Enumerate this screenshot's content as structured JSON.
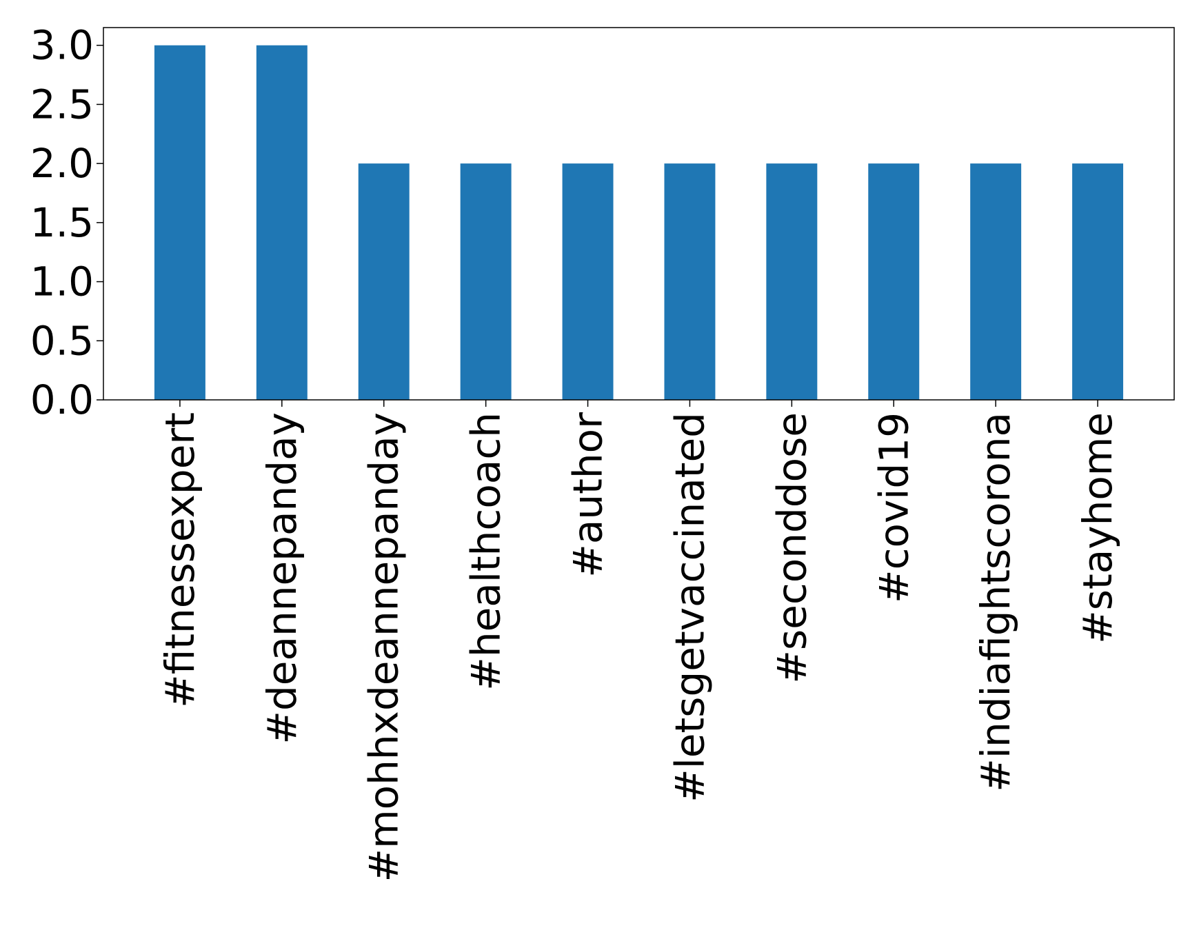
{
  "chart_data": {
    "type": "bar",
    "categories": [
      "#fitnessexpert",
      "#deannepanday",
      "#mohhxdeannepanday",
      "#healthcoach",
      "#author",
      "#letsgetvaccinated",
      "#seconddose",
      "#covid19",
      "#indiafightscorona",
      "#stayhome"
    ],
    "values": [
      3,
      3,
      2,
      2,
      2,
      2,
      2,
      2,
      2,
      2
    ],
    "title": "",
    "xlabel": "",
    "ylabel": "",
    "ylim": [
      0,
      3.15
    ],
    "yticks": [
      "0.0",
      "0.5",
      "1.0",
      "1.5",
      "2.0",
      "2.5",
      "3.0"
    ],
    "grid": false,
    "legend": "none",
    "bar_color": "#1f77b4"
  }
}
